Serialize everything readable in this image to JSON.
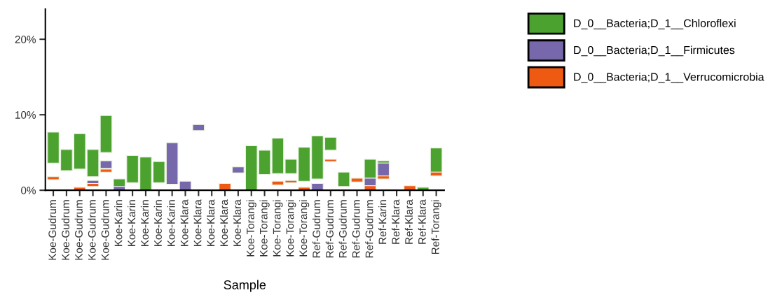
{
  "chart_data": {
    "type": "bar",
    "xlabel": "Sample",
    "categories": [
      "Koe-Gudrum",
      "Koe-Gudrum",
      "Koe-Gudrum",
      "Koe-Gudrum",
      "Koe-Gudrum",
      "Koe-Karin",
      "Koe-Karin",
      "Koe-Karin",
      "Koe-Karin",
      "Koe-Karin",
      "Koe-Klara",
      "Koe-Klara",
      "Koe-Klara",
      "Koe-Klara",
      "Koe-Klara",
      "Koe-Torangi",
      "Koe-Torangi",
      "Koe-Torangi",
      "Koe-Torangi",
      "Koe-Torangi",
      "Ref-Gudrum",
      "Ref-Gudrum",
      "Ref-Gudrum",
      "Ref-Gudrum",
      "Ref-Gudrum",
      "Ref-Karin",
      "Ref-Klara",
      "Ref-Klara",
      "Ref-Klara",
      "Ref-Torangi"
    ],
    "series": [
      {
        "name": "D_0__Bacteria;D_1__Chloroflexi",
        "color": "#4ca22f",
        "base": [
          3.6,
          2.6,
          2.8,
          1.8,
          5.0,
          0.5,
          1.0,
          0,
          1.0,
          null,
          null,
          null,
          null,
          null,
          null,
          0,
          2.1,
          2.2,
          2.2,
          1.2,
          1.5,
          5.3,
          0.5,
          null,
          1.6,
          3.6,
          null,
          null,
          0,
          2.4
        ],
        "values": [
          4.1,
          2.8,
          4.7,
          3.6,
          4.9,
          1.0,
          3.6,
          4.4,
          2.8,
          null,
          null,
          null,
          null,
          null,
          null,
          5.9,
          3.2,
          4.7,
          1.9,
          4.5,
          5.7,
          1.7,
          1.9,
          null,
          2.5,
          0.3,
          null,
          null,
          0.4,
          3.2
        ]
      },
      {
        "name": "D_0__Bacteria;D_1__Firmicutes",
        "color": "#7668aa",
        "base": [
          null,
          null,
          null,
          0.9,
          2.9,
          0,
          null,
          null,
          null,
          0.8,
          0,
          7.9,
          null,
          null,
          2.3,
          null,
          null,
          null,
          null,
          null,
          0,
          null,
          null,
          null,
          0.6,
          1.9,
          null,
          null,
          null,
          null
        ],
        "values": [
          null,
          null,
          null,
          0.4,
          1.0,
          0.5,
          null,
          null,
          null,
          5.5,
          1.2,
          0.8,
          null,
          null,
          0.8,
          null,
          null,
          null,
          null,
          null,
          0.9,
          null,
          null,
          null,
          1.0,
          1.7,
          null,
          null,
          null,
          null
        ]
      },
      {
        "name": "D_0__Bacteria;D_1__Verrucomicrobia",
        "color": "#ef5a13",
        "base": [
          1.4,
          null,
          0,
          0.5,
          2.4,
          null,
          null,
          null,
          null,
          null,
          null,
          null,
          null,
          0,
          null,
          null,
          null,
          0.7,
          1.0,
          0,
          null,
          3.8,
          null,
          1.1,
          0,
          1.5,
          null,
          0,
          null,
          1.9
        ],
        "values": [
          0.4,
          null,
          0.4,
          0.4,
          0.4,
          null,
          null,
          null,
          null,
          null,
          null,
          null,
          null,
          0.9,
          null,
          null,
          null,
          0.5,
          0.3,
          0.4,
          null,
          0.3,
          null,
          0.5,
          0.6,
          0.4,
          null,
          0.6,
          null,
          0.5
        ]
      }
    ],
    "ylim": [
      0,
      24
    ],
    "yticks": [
      {
        "value": 0,
        "label": "0%"
      },
      {
        "value": 10,
        "label": "10%"
      },
      {
        "value": 20,
        "label": "20%"
      }
    ],
    "grid": false,
    "legend": "top right"
  }
}
